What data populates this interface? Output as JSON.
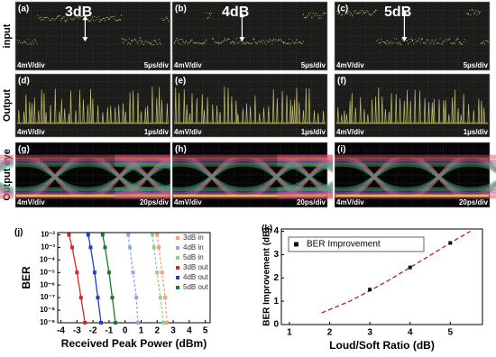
{
  "row_labels": [
    "input",
    "Output",
    "Output eye"
  ],
  "scope_panels": [
    {
      "label": "(a)",
      "title": "3dB",
      "v_div": "4mV/div",
      "t_div": "5µs/div"
    },
    {
      "label": "(b)",
      "title": "4dB",
      "v_div": "4mV/div",
      "t_div": "5µs/div"
    },
    {
      "label": "(c)",
      "title": "5dB",
      "v_div": "4mV/div",
      "t_div": "5µs/div"
    },
    {
      "label": "(d)",
      "v_div": "4mV/div",
      "t_div": "1µs/div"
    },
    {
      "label": "(e)",
      "v_div": "4mV/div",
      "t_div": "1µs/div"
    },
    {
      "label": "(f)",
      "v_div": "4mV/div",
      "t_div": "1µs/div"
    },
    {
      "label": "(g)",
      "v_div": "4mV/div",
      "t_div": "20ps/div"
    },
    {
      "label": "(h)",
      "v_div": "4mV/div",
      "t_div": "20ps/div"
    },
    {
      "label": "(i)",
      "v_div": "4mV/div",
      "t_div": "20ps/div"
    }
  ],
  "chart_data": [
    {
      "type": "line",
      "label": "(j)",
      "x_label": "Received Peak Power (dBm)",
      "y_label": "BER",
      "xlim": [
        -4.2,
        5.3
      ],
      "xticks": [
        -4,
        -3,
        -2,
        -1,
        0,
        1,
        2,
        3,
        4,
        5
      ],
      "ylim": [
        1e-09,
        0.015
      ],
      "log_y": true,
      "yticks": [
        {
          "value": 0.01,
          "label": "10⁻²"
        },
        {
          "value": 0.001,
          "label": "10⁻³"
        },
        {
          "value": 0.0001,
          "label": "10⁻⁴"
        },
        {
          "value": 1e-05,
          "label": "10⁻⁵"
        },
        {
          "value": 1e-06,
          "label": "10⁻⁶"
        },
        {
          "value": 1e-07,
          "label": "10⁻⁷"
        },
        {
          "value": 1e-08,
          "label": "10⁻⁸"
        },
        {
          "value": 1e-09,
          "label": "10⁻⁹"
        }
      ],
      "legend": "upper right",
      "series": [
        {
          "name": "3dB in",
          "color": "#f0a07a",
          "dashed": true,
          "x": [
            2.0,
            2.1,
            2.3,
            2.5,
            2.6
          ],
          "values": [
            0.01,
            0.001,
            1e-05,
            1e-07,
            1e-09
          ]
        },
        {
          "name": "4dB in",
          "color": "#8fa8e8",
          "dashed": true,
          "x": [
            0.2,
            0.3,
            0.5,
            0.7,
            0.8
          ],
          "values": [
            0.01,
            0.001,
            1e-05,
            1e-07,
            1e-09
          ]
        },
        {
          "name": "5dB in",
          "color": "#8fcf8f",
          "dashed": true,
          "x": [
            1.7,
            1.8,
            2.0,
            2.2,
            2.4
          ],
          "values": [
            0.01,
            0.001,
            1e-05,
            1e-07,
            1e-09
          ]
        },
        {
          "name": "3dB out",
          "color": "#d62728",
          "dashed": false,
          "x": [
            -3.5,
            -3.3,
            -3.0,
            -2.75,
            -2.5
          ],
          "values": [
            0.01,
            0.001,
            1e-05,
            1e-07,
            1e-09
          ]
        },
        {
          "name": "4dB out",
          "color": "#1f3fd0",
          "dashed": false,
          "x": [
            -2.3,
            -2.15,
            -1.9,
            -1.7,
            -1.5
          ],
          "values": [
            0.01,
            0.001,
            1e-05,
            1e-07,
            1e-09
          ]
        },
        {
          "name": "5dB out",
          "color": "#1a7a2a",
          "dashed": false,
          "x": [
            -1.4,
            -1.25,
            -1.0,
            -0.8,
            -0.6
          ],
          "values": [
            0.01,
            0.001,
            1e-05,
            1e-07,
            1e-09
          ]
        }
      ]
    },
    {
      "type": "scatter",
      "label": "(k)",
      "x_label": "Loud/Soft Ratio (dB)",
      "y_label": "BER Improvement (dB)",
      "xlim": [
        0.8,
        5.8
      ],
      "xticks": [
        1,
        2,
        3,
        4,
        5
      ],
      "ylim": [
        0,
        4.1
      ],
      "yticks": [
        0,
        1,
        2,
        3,
        4
      ],
      "legend": "upper left",
      "series": [
        {
          "name": "BER Improvement",
          "color": "#111111",
          "x": [
            3,
            4,
            5
          ],
          "values": [
            1.5,
            2.45,
            3.5
          ]
        }
      ],
      "fit": {
        "color": "#b22222",
        "x": [
          1.8,
          2.5,
          3,
          3.5,
          4,
          4.5,
          5,
          5.5
        ],
        "values": [
          0.5,
          1.0,
          1.45,
          1.93,
          2.45,
          2.97,
          3.5,
          4.0
        ]
      }
    }
  ]
}
